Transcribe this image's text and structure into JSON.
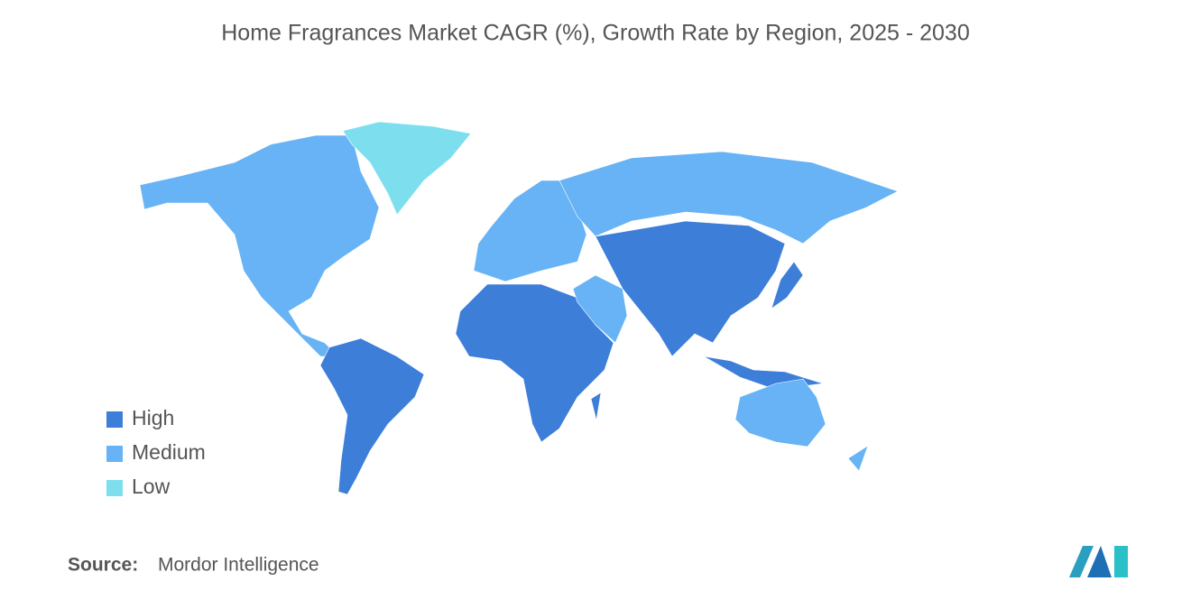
{
  "title": "Home Fragrances Market CAGR (%), Growth Rate by Region, 2025 - 2030",
  "legend": [
    {
      "name": "High",
      "color": "#3d7ed8"
    },
    {
      "name": "Medium",
      "color": "#67b3f5"
    },
    {
      "name": "Low",
      "color": "#7ddfee"
    }
  ],
  "source": {
    "label": "Source:",
    "text": "Mordor Intelligence"
  }
}
